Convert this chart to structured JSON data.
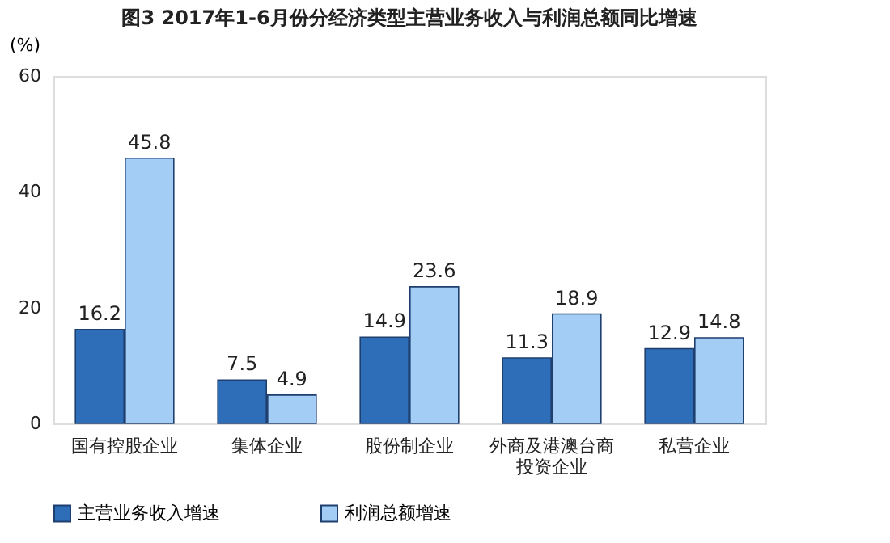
{
  "chart_data": {
    "type": "bar",
    "title": "图3 2017年1-6月份分经济类型主营业务收入与利润总额同比增速",
    "ylabel": "(%)",
    "categories": [
      "国有控股企业",
      "集体企业",
      "股份制企业",
      "外商及港澳台商投资企业",
      "私营企业"
    ],
    "series": [
      {
        "name": "主营业务收入增速",
        "color": "#2e6db8",
        "values": [
          16.2,
          7.5,
          14.9,
          11.3,
          12.9
        ]
      },
      {
        "name": "利润总额增速",
        "color": "#a3cdf5",
        "values": [
          45.8,
          4.9,
          23.6,
          18.9,
          14.8
        ]
      }
    ],
    "ylim": [
      0,
      60
    ],
    "yticks": [
      0,
      20,
      40,
      60
    ],
    "grid": false,
    "legend": "bottom",
    "data_labels": true
  }
}
